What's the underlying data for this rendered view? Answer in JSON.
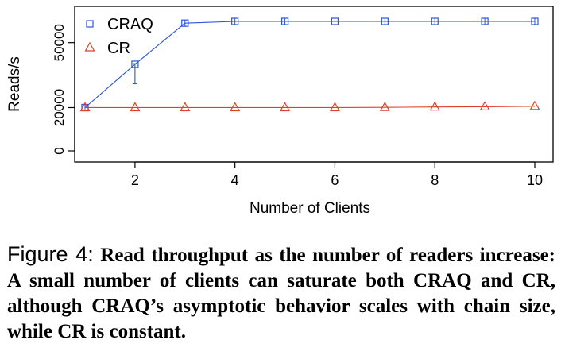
{
  "chart_data": {
    "type": "line",
    "xlabel": "Number of Clients",
    "ylabel": "Reads/s",
    "x": [
      1,
      2,
      3,
      4,
      5,
      6,
      7,
      8,
      9,
      10
    ],
    "xticks": [
      2,
      4,
      6,
      8,
      10
    ],
    "yticks": [
      0,
      20000,
      50000
    ],
    "xlim": [
      0.7,
      10.3
    ],
    "ylim": [
      0,
      62000
    ],
    "grid": false,
    "legend_position": "top-left",
    "series": [
      {
        "name": "CRAQ",
        "marker": "square",
        "color": "#2b56d6",
        "values": [
          20000,
          40000,
          59000,
          59800,
          59800,
          59800,
          59800,
          59800,
          59800,
          59800
        ],
        "error_low": [
          20000,
          31000,
          59000,
          59800,
          59800,
          59800,
          59800,
          59800,
          59800,
          59800
        ],
        "error_high": [
          20000,
          40300,
          59000,
          59800,
          59800,
          59800,
          59800,
          59800,
          59800,
          59800
        ]
      },
      {
        "name": "CR",
        "marker": "triangle",
        "color": "#e0402a",
        "values": [
          20000,
          20000,
          20000,
          20000,
          20000,
          20000,
          20100,
          20300,
          20400,
          20600
        ]
      }
    ]
  },
  "caption": {
    "label": "Figure 4:",
    "text": "Read throughput as the number of readers increase: A small number of clients can saturate both CRAQ and CR, although CRAQ’s asymptotic behavior scales with chain size, while CR is constant."
  }
}
